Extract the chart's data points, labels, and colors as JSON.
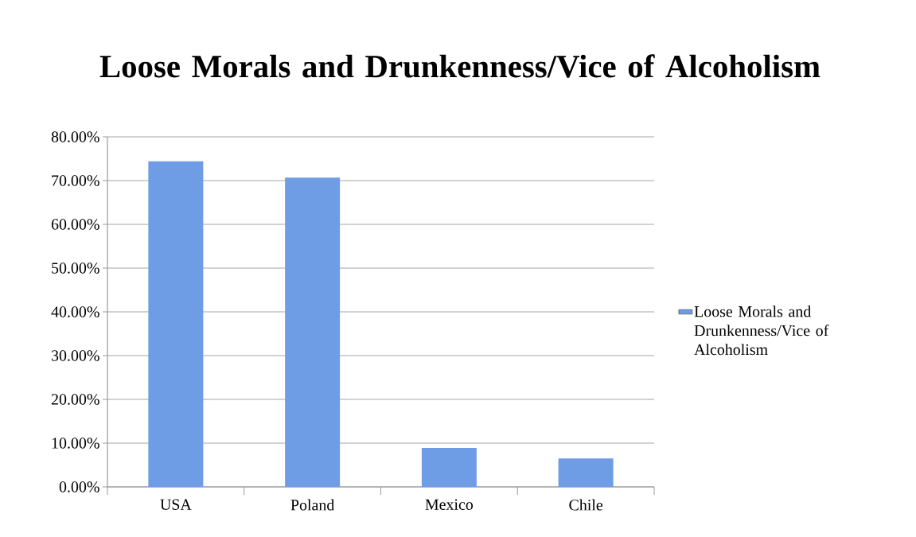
{
  "chart_data": {
    "type": "bar",
    "title": "Loose Morals and Drunkenness/Vice of Alcoholism",
    "categories": [
      "USA",
      "Poland",
      "Mexico",
      "Chile"
    ],
    "series": [
      {
        "name": "Loose Morals and Drunkenness/Vice of Alcoholism",
        "color": "#6e9de6",
        "values": [
          74.4,
          70.7,
          8.9,
          6.5
        ]
      }
    ],
    "ylim": [
      0,
      80
    ],
    "yticks": [
      {
        "value": 0,
        "label": "0.00%"
      },
      {
        "value": 10,
        "label": "10.00%"
      },
      {
        "value": 20,
        "label": "20.00%"
      },
      {
        "value": 30,
        "label": "30.00%"
      },
      {
        "value": 40,
        "label": "40.00%"
      },
      {
        "value": 50,
        "label": "50.00%"
      },
      {
        "value": 60,
        "label": "60.00%"
      },
      {
        "value": 70,
        "label": "70.00%"
      },
      {
        "value": 80,
        "label": "80.00%"
      }
    ],
    "grid": "y",
    "legend": "right"
  }
}
